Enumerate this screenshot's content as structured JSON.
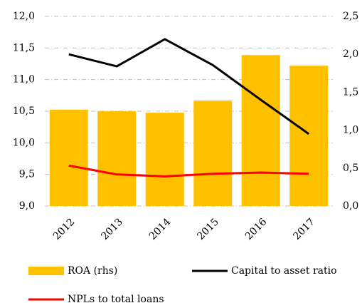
{
  "chart_data": {
    "type": "bar",
    "categories": [
      "2012",
      "2013",
      "2014",
      "2015",
      "2016",
      "2017"
    ],
    "series": [
      {
        "name": "ROA (rhs)",
        "color": "#ffc000",
        "type": "bar",
        "axis": "y2",
        "values": [
          1.27,
          1.25,
          1.23,
          1.39,
          1.99,
          1.85
        ]
      },
      {
        "name": "Capital to asset ratio",
        "color": "#000000",
        "type": "line",
        "values": [
          11.4,
          11.21,
          11.64,
          11.23,
          10.68,
          10.14
        ]
      },
      {
        "name": "NPLs to total loans",
        "color": "#ff0000",
        "type": "line",
        "values": [
          9.64,
          9.5,
          9.47,
          9.51,
          9.53,
          9.51
        ]
      }
    ],
    "ylim": [
      9.0,
      12.0
    ],
    "yticks": [
      {
        "value": 9.0,
        "label": "9,0"
      },
      {
        "value": 9.5,
        "label": "9,5"
      },
      {
        "value": 10.0,
        "label": "10,0"
      },
      {
        "value": 10.5,
        "label": "10,5"
      },
      {
        "value": 11.0,
        "label": "11,0"
      },
      {
        "value": 11.5,
        "label": "11,5"
      },
      {
        "value": 12.0,
        "label": "12,0"
      }
    ],
    "y2lim": [
      0,
      2.5
    ],
    "y2ticks": [
      {
        "value": 0,
        "label": "0,0"
      },
      {
        "value": 0.5,
        "label": "0,5"
      },
      {
        "value": 1.0,
        "label": "1,0"
      },
      {
        "value": 1.5,
        "label": "1,5"
      },
      {
        "value": 2.0,
        "label": "2,0"
      },
      {
        "value": 2.5,
        "label": "2,5"
      }
    ],
    "grid": true
  }
}
